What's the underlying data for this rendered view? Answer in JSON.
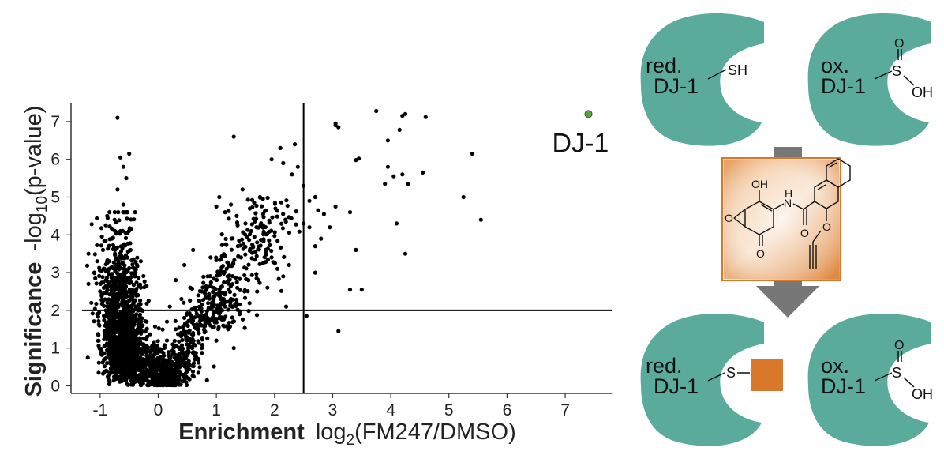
{
  "chart_data": {
    "type": "scatter",
    "title": "",
    "xlabel_bold": "Enrichment",
    "xlabel_rest": "log",
    "xlabel_sub": "2",
    "xlabel_end": "(FM247/DMSO)",
    "ylabel_bold": "Significance",
    "ylabel_rest": "-log",
    "ylabel_sub": "10",
    "ylabel_end": "(p-value)",
    "xlim": [
      -1.5,
      7.8
    ],
    "ylim": [
      -0.2,
      7.5
    ],
    "xticks": [
      -1,
      0,
      1,
      2,
      3,
      4,
      5,
      6,
      7
    ],
    "yticks": [
      0,
      1,
      2,
      3,
      4,
      5,
      6,
      7
    ],
    "threshold_x": 2.5,
    "threshold_y": 2,
    "grid": false,
    "highlight": {
      "label": "DJ-1",
      "x": 7.4,
      "y": 7.2,
      "color": "#5aa33c"
    },
    "series": [
      {
        "color": "#000000",
        "points": [
          [
            3.75,
            7.28
          ],
          [
            4.2,
            7.15
          ],
          [
            4.6,
            7.12
          ],
          [
            4.25,
            7.2
          ],
          [
            3.05,
            6.95
          ],
          [
            3.1,
            6.85
          ],
          [
            3.95,
            6.5
          ],
          [
            3.45,
            6.02
          ],
          [
            3.4,
            5.98
          ],
          [
            5.4,
            6.15
          ],
          [
            3.95,
            5.8
          ],
          [
            4.2,
            5.6
          ],
          [
            4.05,
            5.55
          ],
          [
            4.55,
            5.65
          ],
          [
            4.3,
            5.35
          ],
          [
            3.9,
            5.35
          ],
          [
            2.7,
            5.0
          ],
          [
            5.25,
            5.0
          ],
          [
            5.55,
            4.4
          ],
          [
            4.1,
            4.3
          ],
          [
            4.25,
            3.5
          ],
          [
            3.4,
            3.6
          ],
          [
            3.05,
            6.9
          ],
          [
            4.15,
            6.78
          ],
          [
            3.3,
            2.55
          ],
          [
            3.5,
            2.55
          ],
          [
            3.1,
            1.45
          ],
          [
            2.55,
            1.85
          ],
          [
            3.3,
            4.6
          ],
          [
            3.05,
            4.75
          ],
          [
            2.95,
            4.2
          ],
          [
            2.5,
            4.3
          ],
          [
            2.35,
            6.4
          ],
          [
            2.1,
            6.3
          ],
          [
            1.3,
            6.6
          ],
          [
            2.15,
            5.9
          ],
          [
            1.95,
            6.0
          ],
          [
            2.4,
            5.8
          ],
          [
            2.3,
            5.6
          ],
          [
            2.5,
            5.3
          ],
          [
            2.6,
            4.9
          ],
          [
            2.75,
            4.65
          ],
          [
            2.85,
            4.55
          ],
          [
            2.6,
            4.2
          ],
          [
            2.8,
            3.9
          ],
          [
            2.7,
            3.7
          ],
          [
            2.7,
            3.0
          ],
          [
            2.2,
            2.1
          ],
          [
            2.25,
            3.2
          ],
          [
            2.15,
            2.9
          ],
          [
            1.75,
            5.0
          ],
          [
            1.8,
            4.95
          ],
          [
            1.65,
            4.85
          ],
          [
            1.45,
            5.2
          ],
          [
            1.0,
            4.75
          ],
          [
            1.05,
            5.0
          ],
          [
            1.15,
            4.6
          ],
          [
            1.25,
            4.8
          ],
          [
            1.35,
            4.5
          ],
          [
            1.5,
            4.3
          ],
          [
            1.6,
            4.1
          ],
          [
            1.7,
            3.8
          ],
          [
            1.85,
            3.6
          ],
          [
            1.95,
            3.4
          ],
          [
            2.05,
            3.1
          ],
          [
            1.55,
            2.8
          ],
          [
            1.25,
            2.3
          ],
          [
            1.1,
            2.0
          ],
          [
            1.4,
            1.9
          ],
          [
            1.7,
            2.5
          ],
          [
            0.6,
            3.6
          ],
          [
            0.9,
            3.4
          ],
          [
            0.3,
            2.8
          ],
          [
            0.55,
            2.6
          ],
          [
            0.45,
            3.2
          ],
          [
            0.75,
            2.5
          ],
          [
            0.85,
            2.9
          ],
          [
            0.4,
            2.3
          ],
          [
            0.65,
            2.0
          ],
          [
            0.2,
            2.1
          ],
          [
            0.15,
            1.7
          ],
          [
            0.3,
            1.5
          ],
          [
            0.45,
            1.8
          ],
          [
            0.6,
            1.4
          ],
          [
            0.9,
            1.6
          ],
          [
            1.0,
            1.2
          ],
          [
            1.2,
            1.5
          ],
          [
            1.3,
            1.0
          ],
          [
            0.75,
            1.0
          ],
          [
            0.5,
            0.9
          ],
          [
            0.25,
            1.1
          ],
          [
            0.1,
            0.8
          ],
          [
            0.35,
            0.6
          ],
          [
            0.2,
            0.4
          ],
          [
            0.05,
            0.3
          ],
          [
            0.1,
            0.15
          ],
          [
            -0.05,
            0.1
          ],
          [
            0.0,
            0.05
          ],
          [
            -0.1,
            0.2
          ],
          [
            -0.2,
            0.35
          ],
          [
            -0.7,
            7.1
          ],
          [
            -0.5,
            6.15
          ],
          [
            -0.65,
            6.05
          ],
          [
            -0.6,
            5.8
          ],
          [
            -0.55,
            5.5
          ],
          [
            -0.7,
            5.2
          ],
          [
            -0.6,
            4.8
          ],
          [
            -0.75,
            4.4
          ],
          [
            -0.65,
            4.1
          ],
          [
            -0.8,
            3.9
          ],
          [
            -1.2,
            3.5
          ],
          [
            -1.05,
            3.3
          ],
          [
            -0.95,
            3.6
          ],
          [
            -1.1,
            3.0
          ],
          [
            -1.2,
            2.7
          ],
          [
            -0.9,
            2.8
          ],
          [
            -1.0,
            2.5
          ],
          [
            -1.15,
            2.2
          ],
          [
            -1.05,
            1.9
          ],
          [
            -0.9,
            2.0
          ],
          [
            -0.3,
            3.3
          ],
          [
            -0.4,
            2.9
          ],
          [
            -0.3,
            2.6
          ],
          [
            -0.45,
            2.3
          ],
          [
            -0.35,
            2.0
          ],
          [
            -0.2,
            1.7
          ],
          [
            -0.3,
            1.4
          ],
          [
            -0.45,
            1.1
          ],
          [
            -0.2,
            0.8
          ],
          [
            -0.35,
            0.6
          ]
        ]
      }
    ]
  },
  "diagram": {
    "top_left": {
      "state": "red.",
      "name": "DJ-1",
      "group": "SH"
    },
    "top_right": {
      "state": "ox.",
      "name": "DJ-1",
      "group_s": "S",
      "group_o": "O",
      "group_oh": "OH"
    },
    "bottom_left": {
      "state": "red.",
      "name": "DJ-1",
      "group": "S"
    },
    "bottom_right": {
      "state": "ox.",
      "name": "DJ-1",
      "group_s": "S",
      "group_o": "O",
      "group_oh": "OH"
    },
    "probe": {
      "oh": "OH",
      "nh": "N",
      "h": "H",
      "o1": "O",
      "o2": "O",
      "o3": "O",
      "o4": "O"
    },
    "protein_color": "#5aab9c",
    "probe_color": "#d9782a",
    "arrow_color": "#777777"
  }
}
